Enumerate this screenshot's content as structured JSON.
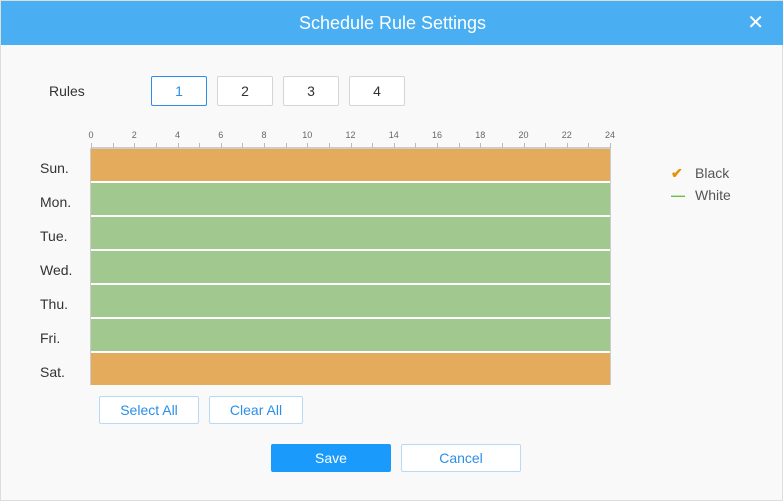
{
  "title": "Schedule Rule Settings",
  "rules": {
    "label": "Rules",
    "options": [
      "1",
      "2",
      "3",
      "4"
    ],
    "selected": "1"
  },
  "axis_ticks": [
    "0",
    "2",
    "4",
    "6",
    "8",
    "10",
    "12",
    "14",
    "16",
    "18",
    "20",
    "22",
    "24"
  ],
  "days": [
    {
      "label": "Sun.",
      "mode": "Black"
    },
    {
      "label": "Mon.",
      "mode": "White"
    },
    {
      "label": "Tue.",
      "mode": "White"
    },
    {
      "label": "Wed.",
      "mode": "White"
    },
    {
      "label": "Thu.",
      "mode": "White"
    },
    {
      "label": "Fri.",
      "mode": "White"
    },
    {
      "label": "Sat.",
      "mode": "Black"
    }
  ],
  "legend": [
    {
      "label": "Black",
      "color": "#e4ab5c",
      "icon": "check-icon"
    },
    {
      "label": "White",
      "color": "#a0c88f",
      "icon": "dash-icon"
    }
  ],
  "buttons": {
    "select_all": "Select All",
    "clear_all": "Clear All",
    "save": "Save",
    "cancel": "Cancel"
  }
}
